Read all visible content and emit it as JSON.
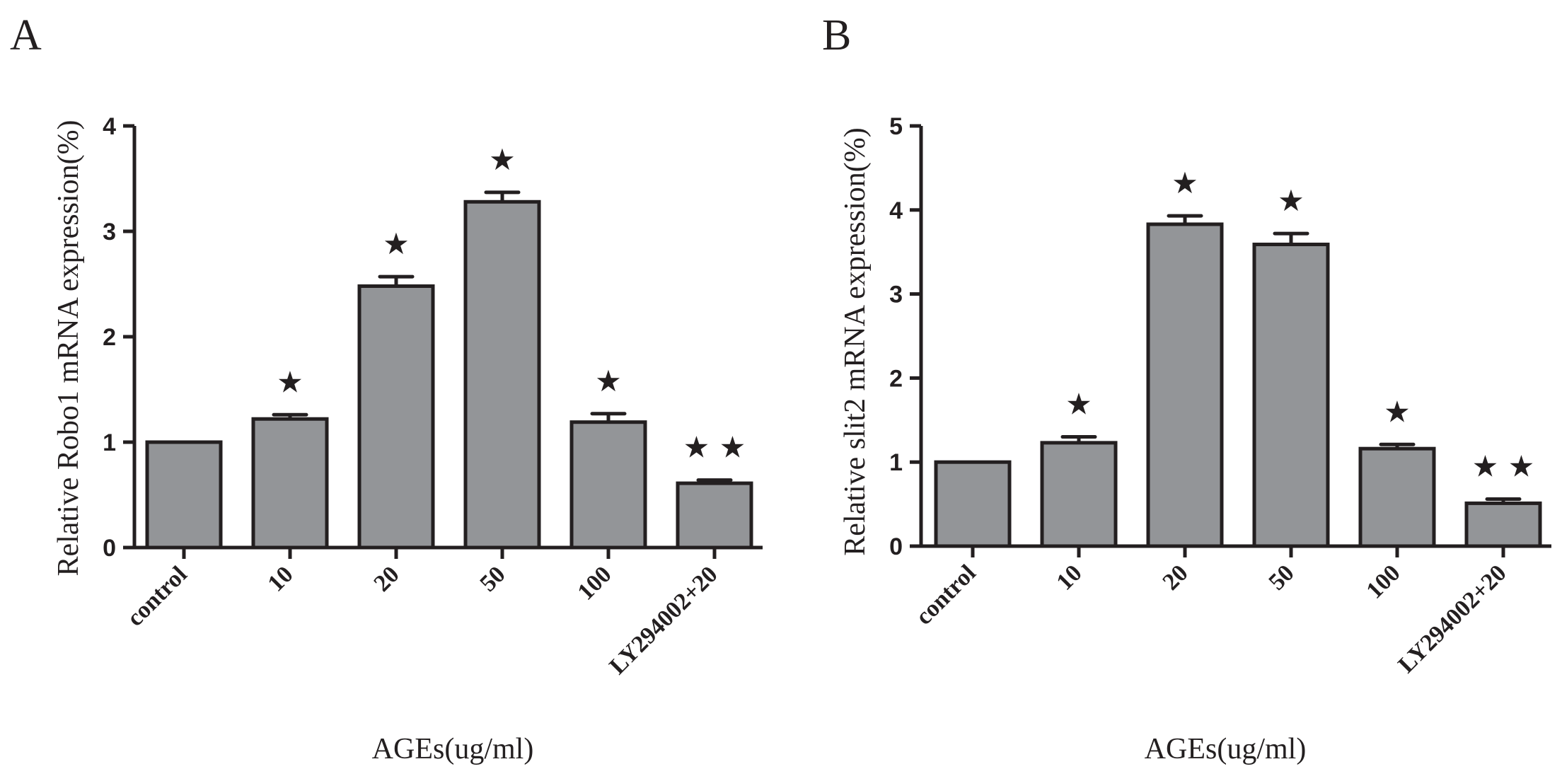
{
  "chart_data": [
    {
      "type": "bar",
      "panel_label": "A",
      "categories": [
        "control",
        "10",
        "20",
        "50",
        "100",
        "LY294002+20"
      ],
      "values": [
        1.0,
        1.22,
        2.48,
        3.28,
        1.19,
        0.61
      ],
      "errors": [
        0.0,
        0.04,
        0.09,
        0.09,
        0.08,
        0.03
      ],
      "significance": [
        "",
        "★",
        "★",
        "★",
        "★",
        "★ ★"
      ],
      "xlabel": "AGEs(ug/ml)",
      "ylabel": "Relative Robo1 mRNA expression(%)",
      "ylim": [
        0,
        4
      ],
      "yticks": [
        0,
        1,
        2,
        3,
        4
      ],
      "bar_color": "#939598",
      "grid": false
    },
    {
      "type": "bar",
      "panel_label": "B",
      "categories": [
        "control",
        "10",
        "20",
        "50",
        "100",
        "LY294002+20"
      ],
      "values": [
        1.0,
        1.23,
        3.83,
        3.59,
        1.16,
        0.51
      ],
      "errors": [
        0.0,
        0.07,
        0.1,
        0.13,
        0.05,
        0.05
      ],
      "significance": [
        "",
        "★",
        "★",
        "★",
        "★",
        "★ ★"
      ],
      "xlabel": "AGEs(ug/ml)",
      "ylabel": "Relative slit2 mRNA expression(%)",
      "ylim": [
        0,
        5
      ],
      "yticks": [
        0,
        1,
        2,
        3,
        4,
        5
      ],
      "bar_color": "#939598",
      "grid": false
    }
  ]
}
